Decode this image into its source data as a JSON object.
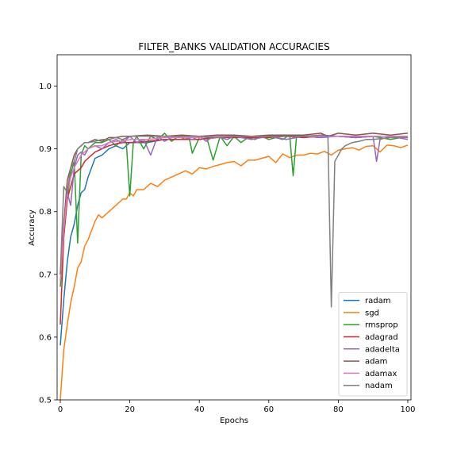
{
  "chart_data": {
    "type": "line",
    "title": "FILTER_BANKS VALIDATION ACCURACIES",
    "xlabel": "Epochs",
    "ylabel": "Accuracy",
    "xlim": [
      0,
      100
    ],
    "ylim": [
      0.5,
      1.05
    ],
    "xticks": [
      "0",
      "20",
      "40",
      "60",
      "80",
      "100"
    ],
    "yticks": [
      "0.5",
      "0.6",
      "0.7",
      "0.8",
      "0.9",
      "1.0"
    ],
    "grid": false,
    "legend_position": "lower-right",
    "series": [
      {
        "name": "radam",
        "color": "#1f77b4",
        "points": [
          [
            0,
            0.587
          ],
          [
            1,
            0.66
          ],
          [
            2,
            0.72
          ],
          [
            3,
            0.76
          ],
          [
            4,
            0.78
          ],
          [
            5,
            0.81
          ],
          [
            6,
            0.83
          ],
          [
            7,
            0.835
          ],
          [
            8,
            0.855
          ],
          [
            9,
            0.87
          ],
          [
            10,
            0.885
          ],
          [
            12,
            0.89
          ],
          [
            14,
            0.9
          ],
          [
            16,
            0.905
          ],
          [
            18,
            0.9
          ],
          [
            20,
            0.91
          ],
          [
            25,
            0.91
          ],
          [
            30,
            0.915
          ],
          [
            35,
            0.915
          ],
          [
            40,
            0.915
          ],
          [
            45,
            0.92
          ],
          [
            50,
            0.918
          ],
          [
            55,
            0.92
          ],
          [
            60,
            0.92
          ],
          [
            65,
            0.92
          ],
          [
            70,
            0.918
          ],
          [
            75,
            0.922
          ],
          [
            80,
            0.92
          ],
          [
            85,
            0.918
          ],
          [
            90,
            0.92
          ],
          [
            95,
            0.92
          ],
          [
            100,
            0.918
          ]
        ]
      },
      {
        "name": "sgd",
        "color": "#ff7f0e",
        "points": [
          [
            0,
            0.5
          ],
          [
            1,
            0.58
          ],
          [
            2,
            0.62
          ],
          [
            3,
            0.655
          ],
          [
            4,
            0.68
          ],
          [
            5,
            0.71
          ],
          [
            6,
            0.72
          ],
          [
            7,
            0.745
          ],
          [
            8,
            0.755
          ],
          [
            9,
            0.77
          ],
          [
            10,
            0.785
          ],
          [
            11,
            0.795
          ],
          [
            12,
            0.79
          ],
          [
            14,
            0.8
          ],
          [
            16,
            0.81
          ],
          [
            18,
            0.82
          ],
          [
            19,
            0.82
          ],
          [
            20,
            0.83
          ],
          [
            21,
            0.825
          ],
          [
            22,
            0.835
          ],
          [
            24,
            0.835
          ],
          [
            26,
            0.845
          ],
          [
            28,
            0.84
          ],
          [
            30,
            0.85
          ],
          [
            32,
            0.855
          ],
          [
            34,
            0.86
          ],
          [
            36,
            0.865
          ],
          [
            38,
            0.86
          ],
          [
            40,
            0.87
          ],
          [
            42,
            0.868
          ],
          [
            44,
            0.872
          ],
          [
            46,
            0.875
          ],
          [
            48,
            0.878
          ],
          [
            50,
            0.88
          ],
          [
            52,
            0.873
          ],
          [
            54,
            0.882
          ],
          [
            56,
            0.882
          ],
          [
            58,
            0.885
          ],
          [
            60,
            0.888
          ],
          [
            62,
            0.878
          ],
          [
            64,
            0.892
          ],
          [
            66,
            0.886
          ],
          [
            68,
            0.89
          ],
          [
            70,
            0.89
          ],
          [
            72,
            0.893
          ],
          [
            74,
            0.892
          ],
          [
            76,
            0.896
          ],
          [
            78,
            0.89
          ],
          [
            80,
            0.898
          ],
          [
            82,
            0.9
          ],
          [
            84,
            0.902
          ],
          [
            86,
            0.898
          ],
          [
            88,
            0.904
          ],
          [
            90,
            0.905
          ],
          [
            92,
            0.895
          ],
          [
            94,
            0.906
          ],
          [
            96,
            0.905
          ],
          [
            98,
            0.902
          ],
          [
            100,
            0.906
          ]
        ]
      },
      {
        "name": "rmsprop",
        "color": "#2ca02c",
        "points": [
          [
            0,
            0.68
          ],
          [
            1,
            0.76
          ],
          [
            2,
            0.82
          ],
          [
            3,
            0.86
          ],
          [
            4,
            0.88
          ],
          [
            5,
            0.75
          ],
          [
            6,
            0.89
          ],
          [
            7,
            0.905
          ],
          [
            8,
            0.9
          ],
          [
            10,
            0.91
          ],
          [
            12,
            0.91
          ],
          [
            14,
            0.915
          ],
          [
            16,
            0.905
          ],
          [
            18,
            0.915
          ],
          [
            19,
            0.91
          ],
          [
            20,
            0.825
          ],
          [
            21,
            0.91
          ],
          [
            22,
            0.92
          ],
          [
            24,
            0.9
          ],
          [
            26,
            0.92
          ],
          [
            28,
            0.915
          ],
          [
            30,
            0.925
          ],
          [
            32,
            0.912
          ],
          [
            34,
            0.92
          ],
          [
            36,
            0.915
          ],
          [
            37,
            0.92
          ],
          [
            38,
            0.893
          ],
          [
            40,
            0.918
          ],
          [
            42,
            0.92
          ],
          [
            44,
            0.882
          ],
          [
            46,
            0.92
          ],
          [
            48,
            0.905
          ],
          [
            50,
            0.92
          ],
          [
            52,
            0.91
          ],
          [
            54,
            0.918
          ],
          [
            56,
            0.915
          ],
          [
            58,
            0.92
          ],
          [
            60,
            0.915
          ],
          [
            62,
            0.918
          ],
          [
            64,
            0.915
          ],
          [
            66,
            0.922
          ],
          [
            67,
            0.857
          ],
          [
            68,
            0.92
          ],
          [
            70,
            0.92
          ],
          [
            72,
            0.92
          ],
          [
            74,
            0.918
          ],
          [
            76,
            0.92
          ],
          [
            80,
            0.92
          ],
          [
            85,
            0.918
          ],
          [
            90,
            0.92
          ],
          [
            95,
            0.915
          ],
          [
            100,
            0.92
          ]
        ]
      },
      {
        "name": "adagrad",
        "color": "#d62728",
        "points": [
          [
            0,
            0.62
          ],
          [
            1,
            0.76
          ],
          [
            2,
            0.82
          ],
          [
            3,
            0.84
          ],
          [
            4,
            0.86
          ],
          [
            5,
            0.865
          ],
          [
            6,
            0.87
          ],
          [
            7,
            0.88
          ],
          [
            8,
            0.885
          ],
          [
            10,
            0.895
          ],
          [
            12,
            0.9
          ],
          [
            14,
            0.905
          ],
          [
            16,
            0.908
          ],
          [
            18,
            0.91
          ],
          [
            20,
            0.91
          ],
          [
            25,
            0.912
          ],
          [
            30,
            0.915
          ],
          [
            35,
            0.915
          ],
          [
            40,
            0.915
          ],
          [
            45,
            0.918
          ],
          [
            50,
            0.918
          ],
          [
            55,
            0.918
          ],
          [
            60,
            0.918
          ],
          [
            65,
            0.92
          ],
          [
            70,
            0.918
          ],
          [
            75,
            0.92
          ],
          [
            80,
            0.92
          ],
          [
            85,
            0.918
          ],
          [
            90,
            0.92
          ],
          [
            95,
            0.92
          ],
          [
            100,
            0.92
          ]
        ]
      },
      {
        "name": "adadelta",
        "color": "#9467bd",
        "points": [
          [
            0,
            0.7
          ],
          [
            1,
            0.78
          ],
          [
            2,
            0.83
          ],
          [
            3,
            0.81
          ],
          [
            4,
            0.87
          ],
          [
            5,
            0.89
          ],
          [
            6,
            0.895
          ],
          [
            7,
            0.89
          ],
          [
            8,
            0.9
          ],
          [
            10,
            0.905
          ],
          [
            12,
            0.9
          ],
          [
            14,
            0.91
          ],
          [
            16,
            0.915
          ],
          [
            18,
            0.91
          ],
          [
            20,
            0.92
          ],
          [
            22,
            0.91
          ],
          [
            24,
            0.915
          ],
          [
            26,
            0.89
          ],
          [
            28,
            0.92
          ],
          [
            30,
            0.912
          ],
          [
            32,
            0.918
          ],
          [
            34,
            0.92
          ],
          [
            36,
            0.918
          ],
          [
            38,
            0.915
          ],
          [
            40,
            0.92
          ],
          [
            42,
            0.912
          ],
          [
            44,
            0.92
          ],
          [
            46,
            0.918
          ],
          [
            48,
            0.915
          ],
          [
            50,
            0.92
          ],
          [
            55,
            0.915
          ],
          [
            60,
            0.92
          ],
          [
            65,
            0.915
          ],
          [
            70,
            0.92
          ],
          [
            75,
            0.918
          ],
          [
            80,
            0.92
          ],
          [
            85,
            0.918
          ],
          [
            90,
            0.92
          ],
          [
            91,
            0.88
          ],
          [
            92,
            0.915
          ],
          [
            95,
            0.92
          ],
          [
            100,
            0.915
          ]
        ]
      },
      {
        "name": "adam",
        "color": "#8c564b",
        "points": [
          [
            0,
            0.7
          ],
          [
            1,
            0.78
          ],
          [
            2,
            0.85
          ],
          [
            3,
            0.87
          ],
          [
            4,
            0.89
          ],
          [
            5,
            0.9
          ],
          [
            6,
            0.905
          ],
          [
            7,
            0.91
          ],
          [
            8,
            0.91
          ],
          [
            10,
            0.915
          ],
          [
            12,
            0.912
          ],
          [
            14,
            0.918
          ],
          [
            16,
            0.918
          ],
          [
            18,
            0.92
          ],
          [
            20,
            0.92
          ],
          [
            25,
            0.922
          ],
          [
            30,
            0.92
          ],
          [
            35,
            0.922
          ],
          [
            40,
            0.92
          ],
          [
            45,
            0.922
          ],
          [
            50,
            0.922
          ],
          [
            55,
            0.92
          ],
          [
            60,
            0.922
          ],
          [
            65,
            0.922
          ],
          [
            70,
            0.922
          ],
          [
            75,
            0.925
          ],
          [
            77,
            0.92
          ],
          [
            80,
            0.925
          ],
          [
            85,
            0.922
          ],
          [
            90,
            0.925
          ],
          [
            95,
            0.922
          ],
          [
            100,
            0.925
          ]
        ]
      },
      {
        "name": "adamax",
        "color": "#e377c2",
        "points": [
          [
            0,
            0.69
          ],
          [
            1,
            0.77
          ],
          [
            2,
            0.83
          ],
          [
            3,
            0.855
          ],
          [
            4,
            0.87
          ],
          [
            5,
            0.88
          ],
          [
            6,
            0.89
          ],
          [
            7,
            0.895
          ],
          [
            8,
            0.9
          ],
          [
            10,
            0.905
          ],
          [
            12,
            0.905
          ],
          [
            14,
            0.91
          ],
          [
            16,
            0.912
          ],
          [
            18,
            0.912
          ],
          [
            20,
            0.915
          ],
          [
            25,
            0.915
          ],
          [
            30,
            0.918
          ],
          [
            35,
            0.918
          ],
          [
            40,
            0.918
          ],
          [
            45,
            0.92
          ],
          [
            50,
            0.92
          ],
          [
            55,
            0.92
          ],
          [
            60,
            0.92
          ],
          [
            65,
            0.92
          ],
          [
            70,
            0.92
          ],
          [
            75,
            0.92
          ],
          [
            80,
            0.92
          ],
          [
            85,
            0.92
          ],
          [
            90,
            0.92
          ],
          [
            95,
            0.92
          ],
          [
            100,
            0.92
          ]
        ]
      },
      {
        "name": "nadam",
        "color": "#7f7f7f",
        "points": [
          [
            0,
            0.7
          ],
          [
            1,
            0.84
          ],
          [
            2,
            0.83
          ],
          [
            3,
            0.87
          ],
          [
            4,
            0.88
          ],
          [
            5,
            0.9
          ],
          [
            6,
            0.905
          ],
          [
            7,
            0.91
          ],
          [
            8,
            0.91
          ],
          [
            10,
            0.912
          ],
          [
            12,
            0.915
          ],
          [
            14,
            0.915
          ],
          [
            16,
            0.918
          ],
          [
            18,
            0.915
          ],
          [
            20,
            0.92
          ],
          [
            25,
            0.92
          ],
          [
            30,
            0.92
          ],
          [
            35,
            0.92
          ],
          [
            40,
            0.92
          ],
          [
            45,
            0.918
          ],
          [
            50,
            0.92
          ],
          [
            55,
            0.92
          ],
          [
            60,
            0.92
          ],
          [
            65,
            0.92
          ],
          [
            70,
            0.92
          ],
          [
            75,
            0.922
          ],
          [
            77,
            0.92
          ],
          [
            78,
            0.648
          ],
          [
            79,
            0.88
          ],
          [
            80,
            0.89
          ],
          [
            81,
            0.9
          ],
          [
            82,
            0.905
          ],
          [
            84,
            0.91
          ],
          [
            86,
            0.912
          ],
          [
            88,
            0.915
          ],
          [
            90,
            0.915
          ],
          [
            95,
            0.918
          ],
          [
            100,
            0.918
          ]
        ]
      }
    ]
  }
}
